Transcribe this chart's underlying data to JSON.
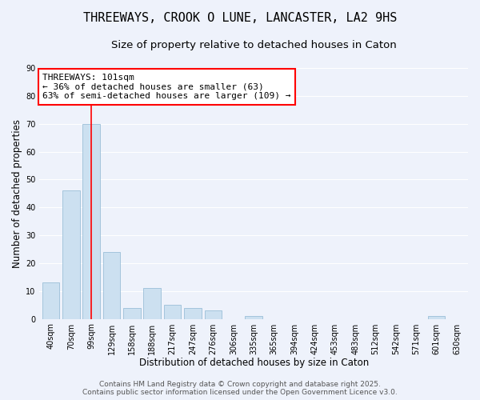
{
  "title": "THREEWAYS, CROOK O LUNE, LANCASTER, LA2 9HS",
  "subtitle": "Size of property relative to detached houses in Caton",
  "xlabel": "Distribution of detached houses by size in Caton",
  "ylabel": "Number of detached properties",
  "categories": [
    "40sqm",
    "70sqm",
    "99sqm",
    "129sqm",
    "158sqm",
    "188sqm",
    "217sqm",
    "247sqm",
    "276sqm",
    "306sqm",
    "335sqm",
    "365sqm",
    "394sqm",
    "424sqm",
    "453sqm",
    "483sqm",
    "512sqm",
    "542sqm",
    "571sqm",
    "601sqm",
    "630sqm"
  ],
  "values": [
    13,
    46,
    70,
    24,
    4,
    11,
    5,
    4,
    3,
    0,
    1,
    0,
    0,
    0,
    0,
    0,
    0,
    0,
    0,
    1,
    0
  ],
  "bar_color": "#cce0f0",
  "bar_edge_color": "#9bbfd8",
  "red_line_index": 2,
  "ylim": [
    0,
    90
  ],
  "yticks": [
    0,
    10,
    20,
    30,
    40,
    50,
    60,
    70,
    80,
    90
  ],
  "annotation_title": "THREEWAYS: 101sqm",
  "annotation_line1": "← 36% of detached houses are smaller (63)",
  "annotation_line2": "63% of semi-detached houses are larger (109) →",
  "footer_line1": "Contains HM Land Registry data © Crown copyright and database right 2025.",
  "footer_line2": "Contains public sector information licensed under the Open Government Licence v3.0.",
  "background_color": "#eef2fb",
  "plot_bg_color": "#eef2fb",
  "grid_color": "#ffffff",
  "title_fontsize": 11,
  "subtitle_fontsize": 9.5,
  "axis_label_fontsize": 8.5,
  "tick_fontsize": 7,
  "annotation_fontsize": 8,
  "footer_fontsize": 6.5
}
